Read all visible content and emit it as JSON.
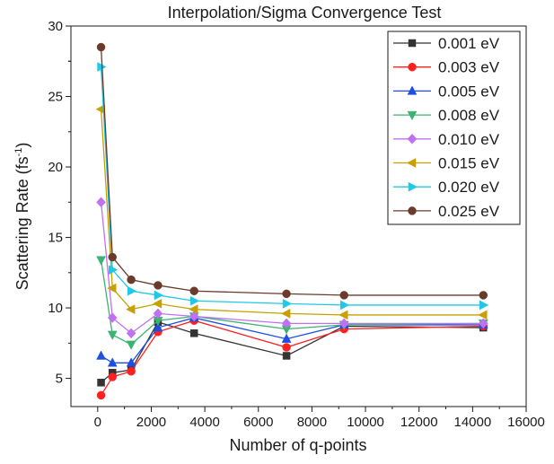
{
  "chart_data": {
    "type": "line",
    "title": "Interpolation/Sigma Convergence Test",
    "xlabel": "Number of q-points",
    "ylabel_main": "Scattering Rate (fs",
    "ylabel_sup": "-1",
    "ylabel_tail": ")",
    "xlim": [
      -1000,
      16000
    ],
    "ylim": [
      3,
      30
    ],
    "xticks": [
      0,
      2000,
      4000,
      6000,
      8000,
      10000,
      12000,
      14000,
      16000
    ],
    "yticks": [
      5,
      10,
      15,
      20,
      25,
      30
    ],
    "grid": false,
    "legend_position": "top-right",
    "x": [
      125,
      550,
      1250,
      2250,
      3600,
      7050,
      9200,
      14400
    ],
    "series": [
      {
        "name": "0.001 eV",
        "color": "#333333",
        "marker": "square",
        "values": [
          4.7,
          5.4,
          5.6,
          9.0,
          8.2,
          6.6,
          8.7,
          8.6
        ]
      },
      {
        "name": "0.003 eV",
        "color": "#ff2020",
        "marker": "circle",
        "values": [
          3.8,
          5.1,
          5.5,
          8.3,
          9.1,
          7.2,
          8.5,
          8.7
        ]
      },
      {
        "name": "0.005 eV",
        "color": "#1f4fe0",
        "marker": "triangle-up",
        "values": [
          6.6,
          6.1,
          6.1,
          8.6,
          9.3,
          7.8,
          8.8,
          8.8
        ]
      },
      {
        "name": "0.008 eV",
        "color": "#3cb371",
        "marker": "triangle-down",
        "values": [
          13.4,
          8.1,
          7.4,
          9.1,
          9.4,
          8.5,
          8.8,
          8.9
        ]
      },
      {
        "name": "0.010 eV",
        "color": "#c070f0",
        "marker": "diamond",
        "values": [
          17.5,
          9.3,
          8.2,
          9.6,
          9.4,
          8.9,
          8.9,
          8.9
        ]
      },
      {
        "name": "0.015 eV",
        "color": "#c8a000",
        "marker": "triangle-left",
        "values": [
          24.1,
          11.4,
          9.9,
          10.3,
          9.9,
          9.6,
          9.5,
          9.5
        ]
      },
      {
        "name": "0.020 eV",
        "color": "#20c8e8",
        "marker": "triangle-right",
        "values": [
          27.1,
          12.7,
          11.2,
          10.9,
          10.5,
          10.3,
          10.2,
          10.2
        ]
      },
      {
        "name": "0.025 eV",
        "color": "#6a3b2b",
        "marker": "circle",
        "values": [
          28.5,
          13.6,
          12.0,
          11.6,
          11.2,
          11.0,
          10.9,
          10.9
        ]
      }
    ]
  }
}
